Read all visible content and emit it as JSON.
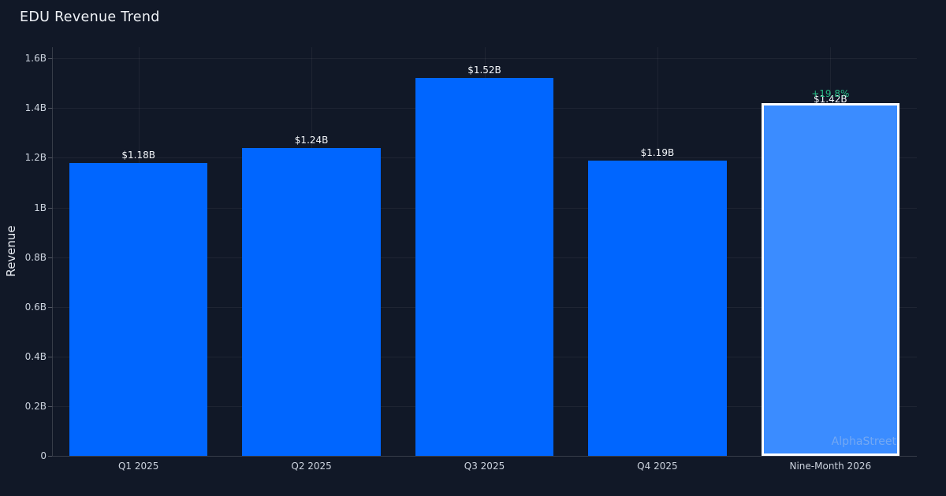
{
  "title": "EDU Revenue Trend",
  "watermark": "AlphaStreet",
  "chart_data": {
    "type": "bar",
    "title": "EDU Revenue Trend",
    "xlabel": "",
    "ylabel": "Revenue",
    "categories": [
      "Q1 2025",
      "Q2 2025",
      "Q3 2025",
      "Q4 2025",
      "Nine-Month 2026"
    ],
    "values": [
      1.18,
      1.24,
      1.52,
      1.19,
      1.42
    ],
    "value_labels": [
      "$1.18B",
      "$1.24B",
      "$1.52B",
      "$1.19B",
      "$1.42B"
    ],
    "ylim": [
      0,
      1.645
    ],
    "yticks": [
      0,
      0.2,
      0.4,
      0.6,
      0.8,
      1.0,
      1.2,
      1.4,
      1.6
    ],
    "ytick_labels": [
      "0",
      "0.2B",
      "0.4B",
      "0.6B",
      "0.8B",
      "1B",
      "1.2B",
      "1.4B",
      "1.6B"
    ],
    "grid": true,
    "legend": "none",
    "bar_color": "#0066ff",
    "highlight": {
      "index": 4,
      "bar_color": "#3b8cff",
      "border_color": "#ffffff",
      "delta_label": "+19.8%",
      "delta_color": "#27ba85"
    },
    "background": "#111827",
    "text_color": "#e6ebf2"
  }
}
